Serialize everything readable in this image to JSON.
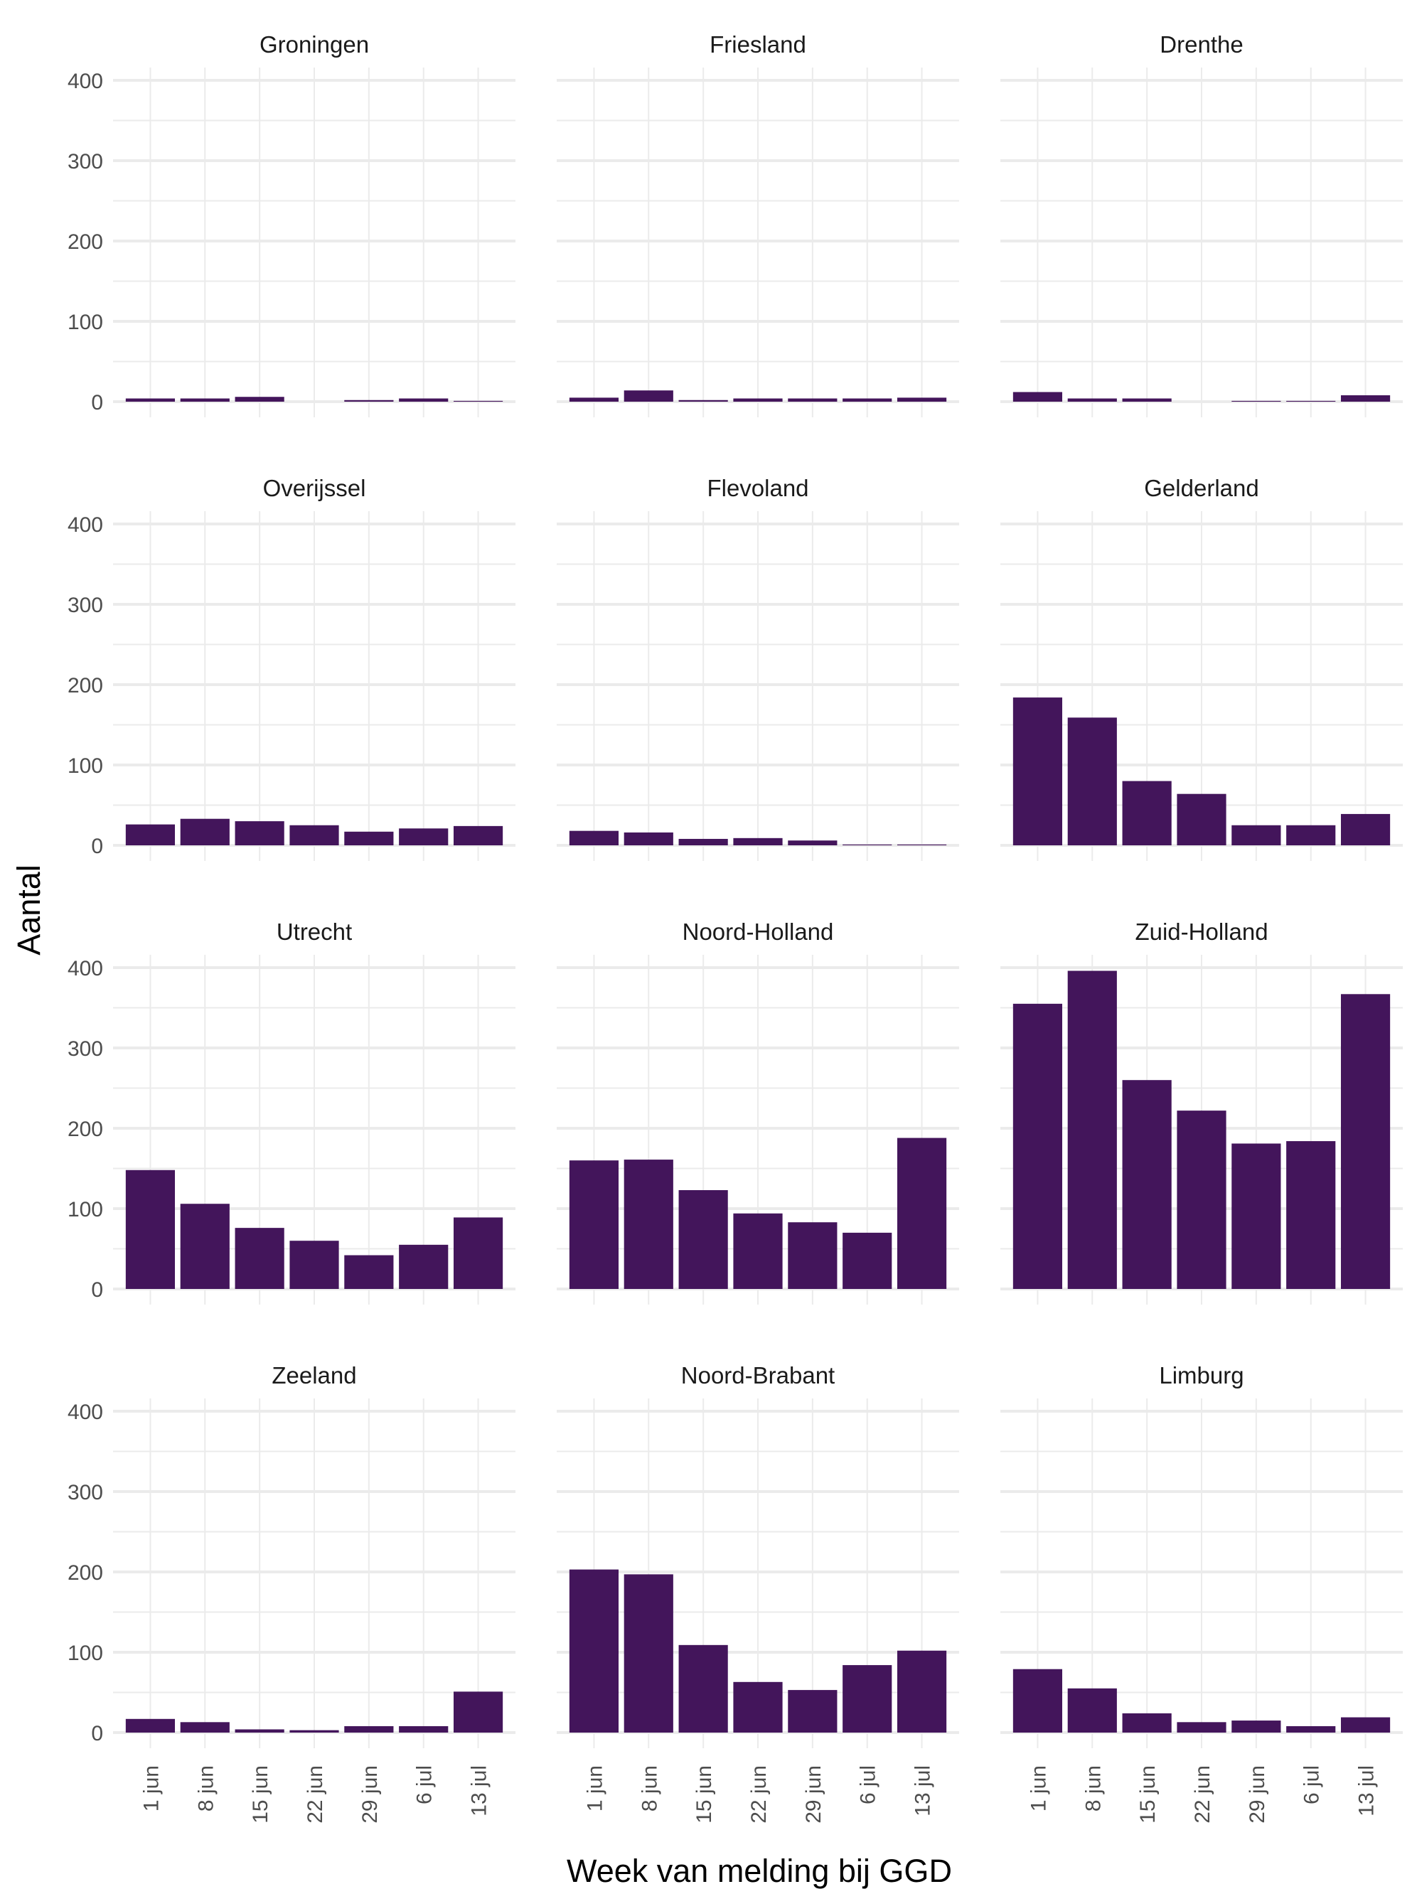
{
  "chart_data": {
    "type": "bar",
    "layout": "facet_wrap 4x3",
    "xlabel": "Week van melding bij GGD",
    "ylabel": "Aantal",
    "categories": [
      "1 jun",
      "8 jun",
      "15 jun",
      "22 jun",
      "29 jun",
      "6 jul",
      "13 jul"
    ],
    "ylim": [
      0,
      400
    ],
    "yticks": [
      0,
      100,
      200,
      300,
      400
    ],
    "grid": true,
    "bar_color": "#43155b",
    "panels": [
      {
        "name": "Groningen",
        "values": [
          4,
          4,
          6,
          0,
          2,
          4,
          1
        ]
      },
      {
        "name": "Friesland",
        "values": [
          5,
          14,
          2,
          4,
          4,
          4,
          5
        ]
      },
      {
        "name": "Drenthe",
        "values": [
          12,
          4,
          4,
          0,
          1,
          1,
          8
        ]
      },
      {
        "name": "Overijssel",
        "values": [
          26,
          33,
          30,
          25,
          17,
          21,
          24
        ]
      },
      {
        "name": "Flevoland",
        "values": [
          18,
          16,
          8,
          9,
          6,
          1,
          1
        ]
      },
      {
        "name": "Gelderland",
        "values": [
          184,
          159,
          80,
          64,
          25,
          25,
          39
        ]
      },
      {
        "name": "Utrecht",
        "values": [
          148,
          106,
          76,
          60,
          42,
          55,
          89
        ]
      },
      {
        "name": "Noord-Holland",
        "values": [
          160,
          161,
          123,
          94,
          83,
          70,
          188
        ]
      },
      {
        "name": "Zuid-Holland",
        "values": [
          355,
          396,
          260,
          222,
          181,
          184,
          367
        ]
      },
      {
        "name": "Zeeland",
        "values": [
          17,
          13,
          4,
          3,
          8,
          8,
          51
        ]
      },
      {
        "name": "Noord-Brabant",
        "values": [
          203,
          197,
          109,
          63,
          53,
          84,
          102
        ]
      },
      {
        "name": "Limburg",
        "values": [
          79,
          55,
          24,
          13,
          15,
          8,
          19
        ]
      }
    ]
  }
}
